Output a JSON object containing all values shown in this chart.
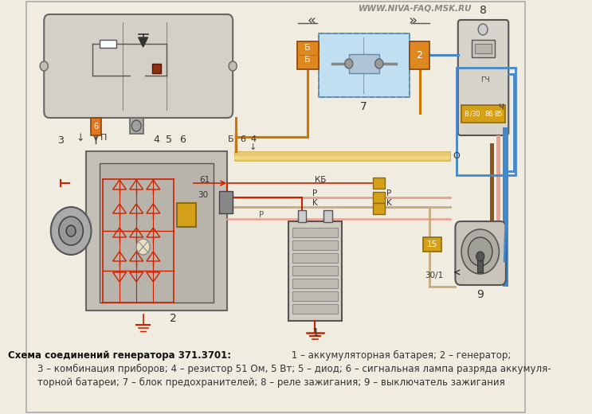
{
  "bg_color": "#f0ece0",
  "watermark": "WWW.NIVA-FAQ.MSK.RU",
  "title_bold": "Схема соединений генератора 371.3701:",
  "caption_rest": " 1 – аккумуляторная батарея; 2 – генератор;",
  "caption_line2": "3 – комбинация приборов; 4 – резистор 51 Ом, 5 Вт; 5 – диод; 6 – сигнальная лампа разряда аккумуля-",
  "caption_line3": "торной батареи; 7 – блок предохранителей; 8 – реле зажигания; 9 – выключатель зажигания",
  "fig_width": 7.43,
  "fig_height": 5.2,
  "dpi": 100
}
